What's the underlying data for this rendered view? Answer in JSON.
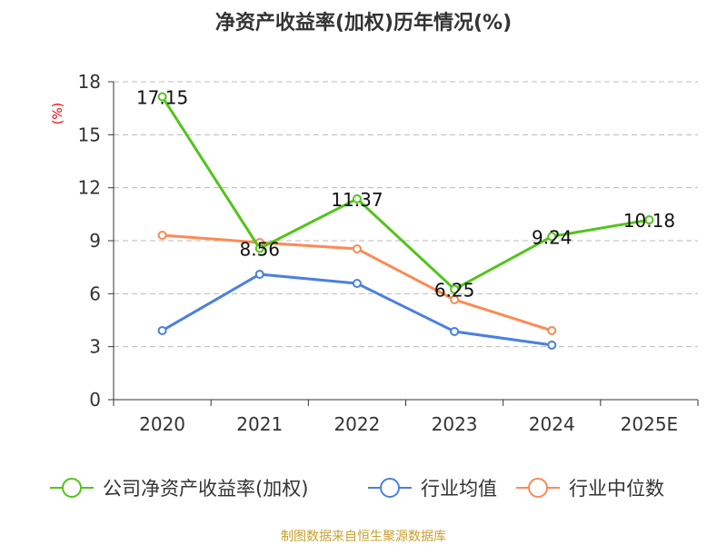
{
  "chart_data": {
    "type": "line",
    "title": "净资产收益率(加权)历年情况(%)",
    "ylabel": "(%)",
    "xlabel": "",
    "categories": [
      "2020",
      "2021",
      "2022",
      "2023",
      "2024",
      "2025E"
    ],
    "ylim": [
      0,
      18
    ],
    "yticks": [
      0,
      3,
      6,
      9,
      12,
      15,
      18
    ],
    "grid": true,
    "legend_position": "bottom",
    "series": [
      {
        "name": "公司净资产收益率(加权)",
        "color": "#52c41a",
        "values": [
          17.15,
          8.56,
          11.37,
          6.25,
          9.24,
          10.18
        ],
        "labels": [
          "17.15",
          "8.56",
          "11.37",
          "6.25",
          "9.24",
          "10.18"
        ]
      },
      {
        "name": "行业均值",
        "color": "#4a80e0",
        "values": [
          3.91,
          7.1,
          6.58,
          3.86,
          3.09,
          null
        ]
      },
      {
        "name": "行业中位数",
        "color": "#fc8a55",
        "values": [
          9.31,
          8.9,
          8.54,
          5.66,
          3.91,
          null
        ]
      }
    ],
    "source": "制图数据来自恒生聚源数据库"
  }
}
